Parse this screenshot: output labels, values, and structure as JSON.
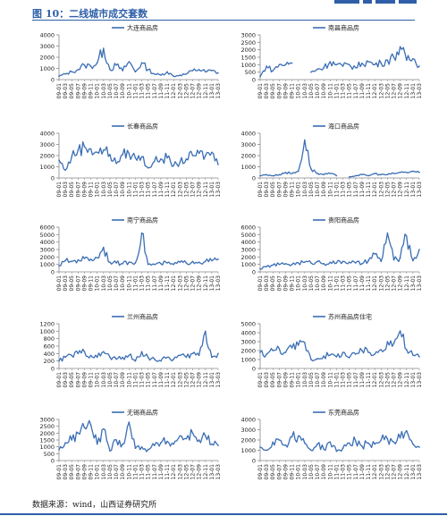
{
  "figure": {
    "title": "图 10：二线城市成交套数",
    "source": "数据来源：wind，山西证券研究所"
  },
  "style": {
    "line_color": "#3b6eb4",
    "accent": "#2e5fa8",
    "axis_color": "#888888"
  },
  "chart_data": [
    {
      "type": "line",
      "title": "大连商品房",
      "ylim": [
        0,
        4000
      ],
      "yticks": [
        0,
        1000,
        2000,
        3000,
        4000
      ],
      "x": [
        "09-01",
        "09-03",
        "09-05",
        "09-07",
        "09-09",
        "09-11",
        "10-01",
        "10-03",
        "10-05",
        "10-07",
        "10-09",
        "10-11",
        "11-01",
        "11-03",
        "11-05",
        "11-07",
        "11-09",
        "11-11",
        "12-01",
        "12-03",
        "12-05",
        "12-07",
        "12-09",
        "12-11",
        "13-01",
        "13-03"
      ],
      "series": [
        {
          "name": "大连商品房",
          "values": [
            300,
            500,
            700,
            900,
            1300,
            1200,
            1500,
            2800,
            900,
            1300,
            800,
            1600,
            700,
            1500,
            900,
            500,
            400,
            700,
            300,
            400,
            500,
            800,
            900,
            700,
            800,
            600
          ]
        }
      ]
    },
    {
      "type": "line",
      "title": "南昌商品房",
      "ylim": [
        0,
        3000
      ],
      "yticks": [
        0,
        500,
        1000,
        1500,
        2000,
        2500,
        3000
      ],
      "x": [
        "09-01",
        "09-03",
        "09-05",
        "09-07",
        "09-09",
        "09-11",
        "10-01",
        "10-03",
        "10-05",
        "10-07",
        "10-09",
        "10-11",
        "11-01",
        "11-03",
        "11-05",
        "11-07",
        "11-09",
        "11-11",
        "12-01",
        "12-03",
        "12-05",
        "12-07",
        "12-09",
        "12-11",
        "13-01",
        "13-03"
      ],
      "series": [
        {
          "name": "南昌商品房",
          "values": [
            200,
            900,
            600,
            1000,
            1000,
            1100,
            null,
            null,
            500,
            700,
            800,
            1200,
            1000,
            900,
            1000,
            800,
            1100,
            1200,
            1000,
            1100,
            1300,
            1500,
            2200,
            1300,
            1400,
            900
          ]
        }
      ]
    },
    {
      "type": "line",
      "title": "长春商品房",
      "ylim": [
        0,
        4000
      ],
      "yticks": [
        0,
        1000,
        2000,
        3000,
        4000
      ],
      "x": [
        "09-01",
        "09-03",
        "09-05",
        "09-07",
        "09-09",
        "09-11",
        "10-01",
        "10-03",
        "10-05",
        "10-07",
        "10-09",
        "10-11",
        "11-01",
        "11-03",
        "11-05",
        "11-07",
        "11-09",
        "11-11",
        "12-01",
        "12-03",
        "12-05",
        "12-07",
        "12-09",
        "12-11",
        "13-01",
        "13-03"
      ],
      "series": [
        {
          "name": "长春商品房",
          "values": [
            1600,
            700,
            1900,
            2500,
            2800,
            2600,
            2300,
            2500,
            2100,
            1300,
            2100,
            2200,
            1800,
            1900,
            900,
            1500,
            1700,
            1800,
            1100,
            1400,
            1700,
            2000,
            2200,
            2000,
            2300,
            1200
          ]
        }
      ]
    },
    {
      "type": "line",
      "title": "海口商品房",
      "ylim": [
        0,
        4000
      ],
      "yticks": [
        0,
        1000,
        2000,
        3000,
        4000
      ],
      "x": [
        "09-01",
        "09-03",
        "09-05",
        "09-07",
        "09-09",
        "09-11",
        "10-01",
        "10-03",
        "10-05",
        "10-07",
        "10-09",
        "10-11",
        "11-01",
        "11-03",
        "11-05",
        "11-07",
        "11-09",
        "11-11",
        "12-01",
        "12-03",
        "12-05",
        "12-07",
        "12-09",
        "12-11",
        "13-01",
        "13-03"
      ],
      "series": [
        {
          "name": "海口商品房",
          "values": [
            200,
            300,
            200,
            300,
            500,
            400,
            600,
            3400,
            800,
            400,
            300,
            400,
            200,
            null,
            100,
            200,
            300,
            200,
            400,
            300,
            300,
            400,
            500,
            500,
            600,
            500
          ]
        }
      ]
    },
    {
      "type": "line",
      "title": "南宁商品房",
      "ylim": [
        0,
        6000
      ],
      "yticks": [
        0,
        1000,
        2000,
        3000,
        4000,
        5000,
        6000
      ],
      "x": [
        "09-01",
        "09-03",
        "09-05",
        "09-07",
        "09-09",
        "09-11",
        "10-01",
        "10-03",
        "10-05",
        "10-07",
        "10-09",
        "10-11",
        "11-01",
        "11-03",
        "11-05",
        "11-07",
        "11-09",
        "11-11",
        "12-01",
        "12-03",
        "12-05",
        "12-07",
        "12-09",
        "12-11",
        "13-01",
        "13-03"
      ],
      "series": [
        {
          "name": "南宁商品房",
          "values": [
            800,
            1500,
            1400,
            1600,
            1800,
            1700,
            1900,
            3300,
            1300,
            1200,
            1100,
            1300,
            1200,
            5200,
            1000,
            1000,
            1100,
            1200,
            1000,
            1300,
            1200,
            1400,
            1300,
            1400,
            1500,
            1700
          ]
        }
      ]
    },
    {
      "type": "line",
      "title": "贵阳商品房",
      "ylim": [
        0,
        6000
      ],
      "yticks": [
        0,
        1000,
        2000,
        3000,
        4000,
        5000,
        6000
      ],
      "x": [
        "09-01",
        "09-03",
        "09-05",
        "09-07",
        "09-09",
        "09-11",
        "10-01",
        "10-03",
        "10-05",
        "10-07",
        "10-09",
        "10-11",
        "11-01",
        "11-03",
        "11-05",
        "11-07",
        "11-09",
        "11-11",
        "12-01",
        "12-03",
        "12-05",
        "12-07",
        "12-09",
        "12-11",
        "13-01",
        "13-03"
      ],
      "series": [
        {
          "name": "贵阳商品房",
          "values": [
            400,
            700,
            900,
            1000,
            1100,
            1000,
            1200,
            1300,
            1200,
            1400,
            1100,
            1300,
            1200,
            1400,
            1300,
            1200,
            1100,
            1500,
            2400,
            1400,
            5200,
            1600,
            1900,
            4800,
            1500,
            3000
          ]
        }
      ]
    },
    {
      "type": "line",
      "title": "兰州商品房",
      "ylim": [
        0,
        1200
      ],
      "yticks": [
        0,
        200,
        400,
        600,
        800,
        1000,
        1200
      ],
      "x": [
        "09-01",
        "09-03",
        "09-05",
        "09-07",
        "09-09",
        "09-11",
        "10-01",
        "10-03",
        "10-05",
        "10-07",
        "10-09",
        "10-11",
        "11-01",
        "11-03",
        "11-05",
        "11-07",
        "11-09",
        "11-11",
        "12-01",
        "12-03",
        "12-05",
        "12-07",
        "12-09",
        "12-11",
        "13-01",
        "13-03"
      ],
      "series": [
        {
          "name": "兰州商品房",
          "values": [
            200,
            300,
            350,
            400,
            450,
            350,
            300,
            450,
            300,
            250,
            300,
            350,
            200,
            450,
            300,
            250,
            200,
            300,
            250,
            350,
            300,
            400,
            350,
            1000,
            300,
            400
          ]
        }
      ]
    },
    {
      "type": "line",
      "title": "苏州商品房住宅",
      "ylim": [
        0,
        5000
      ],
      "yticks": [
        0,
        1000,
        2000,
        3000,
        4000,
        5000
      ],
      "x": [
        "09-01",
        "09-03",
        "09-05",
        "09-07",
        "09-09",
        "09-11",
        "10-01",
        "10-03",
        "10-05",
        "10-07",
        "10-09",
        "10-11",
        "11-01",
        "11-03",
        "11-05",
        "11-07",
        "11-09",
        "11-11",
        "12-01",
        "12-03",
        "12-05",
        "12-07",
        "12-09",
        "12-11",
        "13-01",
        "13-03"
      ],
      "series": [
        {
          "name": "苏州商品房住宅",
          "values": [
            1800,
            1600,
            2000,
            2200,
            1800,
            2300,
            2600,
            2900,
            1000,
            1100,
            1400,
            1500,
            1300,
            1800,
            1200,
            1600,
            2000,
            1800,
            1600,
            2100,
            3000,
            2800,
            4200,
            2100,
            1500,
            1300
          ]
        }
      ]
    },
    {
      "type": "line",
      "title": "无锡商品房",
      "ylim": [
        0,
        3000
      ],
      "yticks": [
        0,
        500,
        1000,
        1500,
        2000,
        2500,
        3000
      ],
      "x": [
        "09-01",
        "09-03",
        "09-05",
        "09-07",
        "09-09",
        "09-11",
        "10-01",
        "10-03",
        "10-05",
        "10-07",
        "10-09",
        "10-11",
        "11-01",
        "11-03",
        "11-05",
        "11-07",
        "11-09",
        "11-11",
        "12-01",
        "12-03",
        "12-05",
        "12-07",
        "12-09",
        "12-11",
        "13-01",
        "13-03"
      ],
      "series": [
        {
          "name": "无锡商品房",
          "values": [
            800,
            1300,
            1500,
            2000,
            2400,
            2600,
            1200,
            2300,
            700,
            1500,
            1200,
            2800,
            900,
            1000,
            800,
            1100,
            1300,
            1400,
            1200,
            1800,
            1600,
            2000,
            1500,
            1800,
            1200,
            1100
          ]
        }
      ]
    },
    {
      "type": "line",
      "title": "东莞商品房",
      "ylim": [
        0,
        4000
      ],
      "yticks": [
        0,
        1000,
        2000,
        3000,
        4000
      ],
      "x": [
        "09-01",
        "09-03",
        "09-05",
        "09-07",
        "09-09",
        "09-11",
        "10-01",
        "10-03",
        "10-05",
        "10-07",
        "10-09",
        "10-11",
        "11-01",
        "11-03",
        "11-05",
        "11-07",
        "11-09",
        "11-11",
        "12-01",
        "12-03",
        "12-05",
        "12-07",
        "12-09",
        "12-11",
        "13-01",
        "13-03"
      ],
      "series": [
        {
          "name": "东莞商品房",
          "values": [
            1300,
            1000,
            1800,
            2000,
            1500,
            2300,
            2400,
            1700,
            1000,
            1600,
            1100,
            1800,
            900,
            1200,
            1700,
            1900,
            1400,
            1700,
            1600,
            2000,
            2100,
            1800,
            2200,
            2900,
            1600,
            1300
          ]
        }
      ]
    }
  ]
}
